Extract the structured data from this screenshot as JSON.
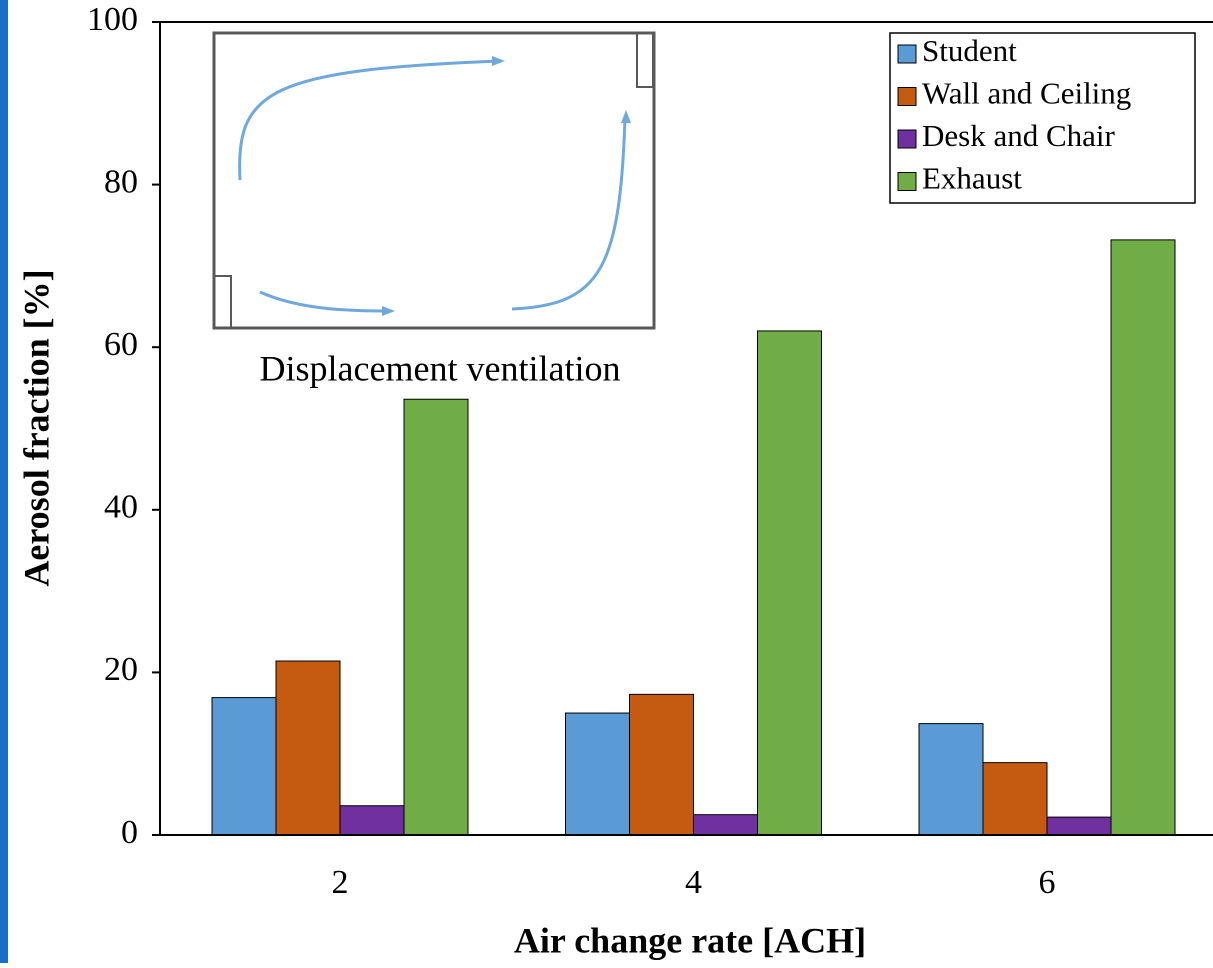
{
  "chart_data": {
    "type": "bar",
    "xlabel": "Air change rate [ACH]",
    "ylabel": "Aerosol fraction [%]",
    "annotation": "Displacement ventilation",
    "categories": [
      "2",
      "4",
      "6"
    ],
    "series": [
      {
        "name": "Student",
        "color": "#5b9bd5",
        "values": [
          16.9,
          15.0,
          13.7
        ]
      },
      {
        "name": "Wall and Ceiling",
        "color": "#c55a11",
        "values": [
          21.4,
          17.3,
          8.9
        ]
      },
      {
        "name": "Desk and Chair",
        "color": "#7030a0",
        "values": [
          3.6,
          2.5,
          2.2
        ]
      },
      {
        "name": "Exhaust",
        "color": "#70ad47",
        "values": [
          53.6,
          62.0,
          73.2
        ]
      }
    ],
    "ylim": [
      0,
      100
    ],
    "yticks": [
      0,
      20,
      40,
      60,
      80,
      100
    ],
    "grid": false,
    "legend": "upper right"
  }
}
